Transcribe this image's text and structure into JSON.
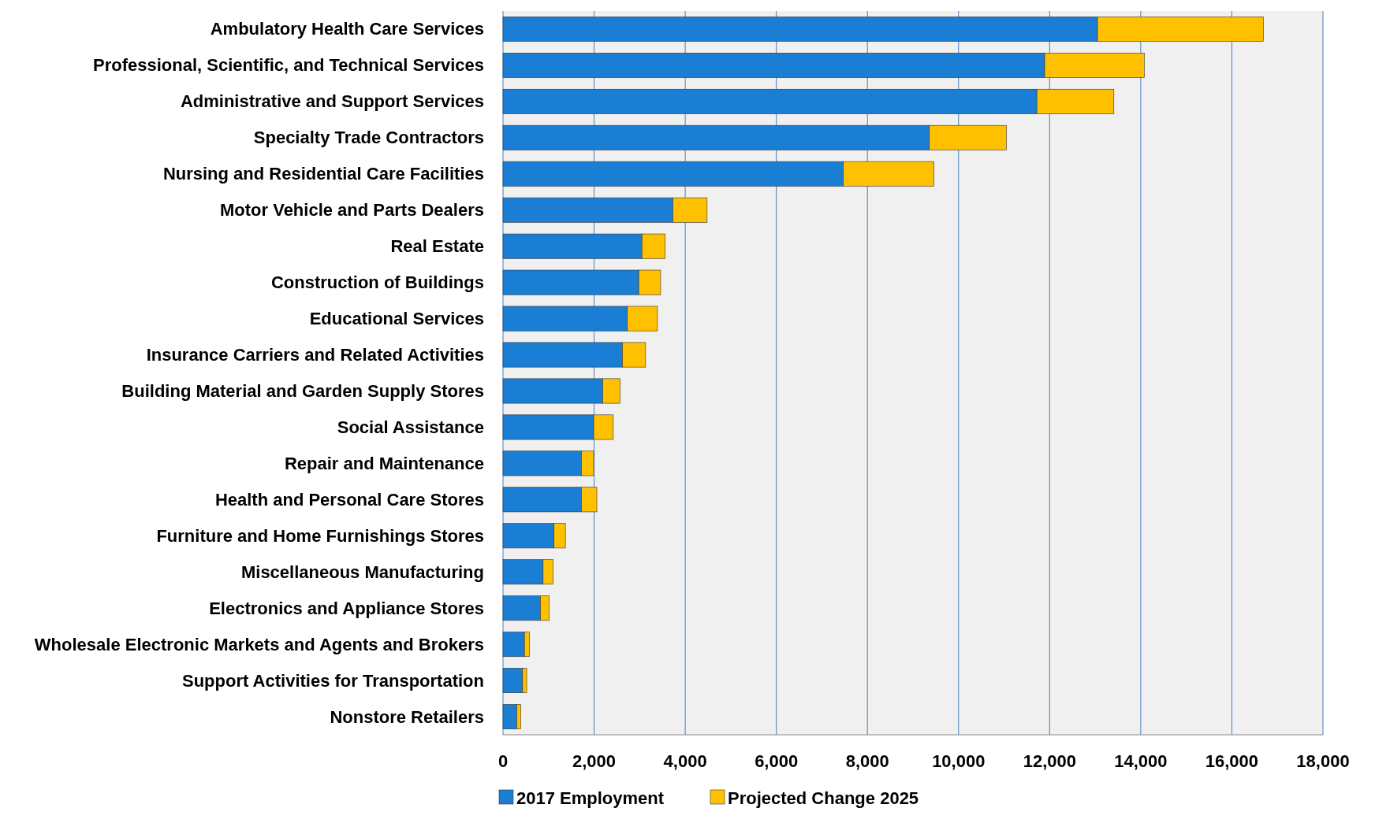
{
  "chart_data": {
    "type": "bar",
    "orientation": "horizontal",
    "stacked": true,
    "grid": "x",
    "legend": "bottom",
    "categories": [
      "Ambulatory Health Care Services",
      "Professional, Scientific, and Technical Services",
      "Administrative and Support Services",
      "Specialty Trade Contractors",
      "Nursing and Residential Care Facilities",
      "Motor Vehicle and Parts Dealers",
      "Real Estate",
      "Construction of Buildings",
      "Educational Services",
      "Insurance Carriers and Related Activities",
      "Building Material and Garden Supply Stores",
      "Social Assistance",
      "Repair and Maintenance",
      "Health and Personal Care Stores",
      "Furniture and Home Furnishings Stores",
      "Miscellaneous Manufacturing",
      "Electronics and Appliance Stores",
      "Wholesale Electronic Markets and Agents and Brokers",
      "Support Activities for Transportation",
      "Nonstore Retailers"
    ],
    "series": [
      {
        "name": "2017 Employment",
        "color": "#1a7fd4",
        "values": [
          13050,
          11890,
          11720,
          9360,
          7470,
          3730,
          3050,
          2980,
          2730,
          2620,
          2190,
          1990,
          1720,
          1720,
          1120,
          880,
          820,
          470,
          430,
          300
        ]
      },
      {
        "name": "Projected Change 2025",
        "color": "#ffc000",
        "values": [
          3640,
          2190,
          1690,
          1690,
          1990,
          750,
          510,
          480,
          660,
          510,
          380,
          430,
          270,
          340,
          250,
          220,
          190,
          110,
          90,
          90
        ]
      }
    ],
    "xlim": [
      0,
      18000
    ],
    "xticks": [
      {
        "value": 0,
        "label": "0"
      },
      {
        "value": 2000,
        "label": "2,000"
      },
      {
        "value": 4000,
        "label": "4,000"
      },
      {
        "value": 6000,
        "label": "6,000"
      },
      {
        "value": 8000,
        "label": "8,000"
      },
      {
        "value": 10000,
        "label": "10,000"
      },
      {
        "value": 12000,
        "label": "12,000"
      },
      {
        "value": 14000,
        "label": "14,000"
      },
      {
        "value": 16000,
        "label": "16,000"
      },
      {
        "value": 18000,
        "label": "18,000"
      }
    ]
  }
}
